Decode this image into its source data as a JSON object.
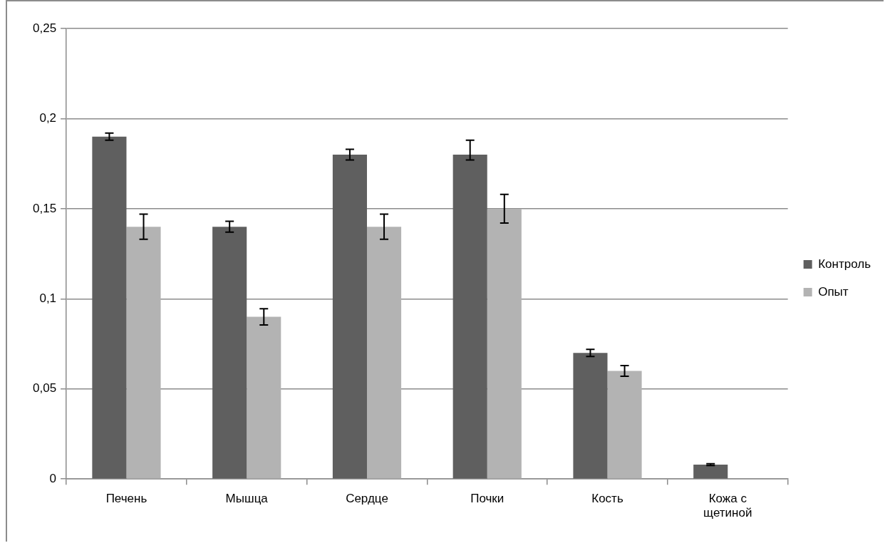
{
  "chart_data": {
    "type": "bar",
    "categories": [
      "Печень",
      "Мышца",
      "Сердце",
      "Почки",
      "Кость",
      "Кожа с щетиной"
    ],
    "series": [
      {
        "name": "Контроль",
        "color": "#5f5f5f",
        "values": [
          0.19,
          0.14,
          0.18,
          0.18,
          0.07,
          0.008
        ],
        "errors": [
          0.002,
          0.003,
          0.003,
          [
            0.177,
            0.188
          ],
          0.002,
          0.0005
        ]
      },
      {
        "name": "Опыт",
        "color": "#b3b3b3",
        "values": [
          0.14,
          0.09,
          0.14,
          0.15,
          0.06,
          null
        ],
        "errors": [
          0.007,
          0.0045,
          0.007,
          0.008,
          0.003,
          null
        ]
      }
    ],
    "ylim": [
      0,
      0.25
    ],
    "yticks": [
      {
        "value": 0,
        "label": "0"
      },
      {
        "value": 0.05,
        "label": "0,05"
      },
      {
        "value": 0.1,
        "label": "0,1"
      },
      {
        "value": 0.15,
        "label": "0,15"
      },
      {
        "value": 0.2,
        "label": "0,2"
      },
      {
        "value": 0.25,
        "label": "0,25"
      }
    ],
    "grid": "y",
    "legend": "right"
  }
}
